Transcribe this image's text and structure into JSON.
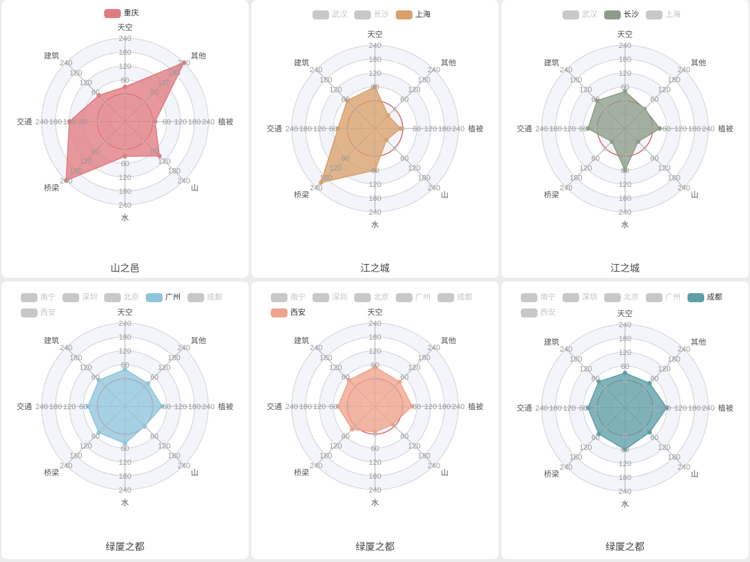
{
  "indicators": [
    "天空",
    "其他",
    "植被",
    "山",
    "水",
    "桥梁",
    "交通",
    "建筑"
  ],
  "radius_ticks": [
    "240",
    "180",
    "120",
    "60",
    "0"
  ],
  "colors": {
    "grid": "#cfd2d8",
    "axis": "#aeb3bb",
    "zero_ring": "#e05050",
    "band_light": "#f3f5fa",
    "band_white": "#ffffff",
    "legend_off": "#c8c8c8"
  },
  "chart_data": [
    {
      "type": "radar",
      "title": "山之邑",
      "indicators": [
        "天空",
        "其他",
        "植被",
        "山",
        "水",
        "桥梁",
        "交通",
        "建筑"
      ],
      "range": [
        -120,
        240
      ],
      "legend": [
        {
          "name": "重庆",
          "active": true
        }
      ],
      "series": [
        {
          "name": "重庆",
          "color": "#e07b80",
          "values": [
            30,
            240,
            10,
            90,
            30,
            240,
            120,
            40
          ]
        }
      ]
    },
    {
      "type": "radar",
      "title": "江之城",
      "indicators": [
        "天空",
        "其他",
        "植被",
        "山",
        "水",
        "桥梁",
        "交通",
        "建筑"
      ],
      "range": [
        -120,
        240
      ],
      "legend": [
        {
          "name": "武汉",
          "active": false
        },
        {
          "name": "长沙",
          "active": false
        },
        {
          "name": "上海",
          "active": true
        }
      ],
      "series": [
        {
          "name": "上海",
          "color": "#d9a06b",
          "values": [
            60,
            -40,
            -10,
            -50,
            60,
            210,
            40,
            50
          ]
        }
      ]
    },
    {
      "type": "radar",
      "title": "江之城",
      "indicators": [
        "天空",
        "其他",
        "植被",
        "山",
        "水",
        "桥梁",
        "交通",
        "建筑"
      ],
      "range": [
        -120,
        240
      ],
      "legend": [
        {
          "name": "武汉",
          "active": false
        },
        {
          "name": "长沙",
          "active": true
        },
        {
          "name": "上海",
          "active": false
        }
      ],
      "series": [
        {
          "name": "长沙",
          "color": "#8c9c88",
          "values": [
            40,
            0,
            30,
            -40,
            60,
            -40,
            40,
            50
          ]
        }
      ]
    },
    {
      "type": "radar",
      "title": "绿厦之都",
      "indicators": [
        "天空",
        "其他",
        "植被",
        "山",
        "水",
        "桥梁",
        "交通",
        "建筑"
      ],
      "range": [
        -120,
        240
      ],
      "legend": [
        {
          "name": "南宁",
          "active": false
        },
        {
          "name": "深圳",
          "active": false
        },
        {
          "name": "北京",
          "active": false
        },
        {
          "name": "广州",
          "active": true
        },
        {
          "name": "成都",
          "active": false
        },
        {
          "name": "西安",
          "active": false
        }
      ],
      "series": [
        {
          "name": "广州",
          "color": "#8fc5dc",
          "values": [
            40,
            20,
            40,
            0,
            40,
            40,
            40,
            40
          ]
        }
      ]
    },
    {
      "type": "radar",
      "title": "绿厦之都",
      "indicators": [
        "天空",
        "其他",
        "植被",
        "山",
        "水",
        "桥梁",
        "交通",
        "建筑"
      ],
      "range": [
        -120,
        240
      ],
      "legend": [
        {
          "name": "南宁",
          "active": false
        },
        {
          "name": "深圳",
          "active": false
        },
        {
          "name": "北京",
          "active": false
        },
        {
          "name": "广州",
          "active": false
        },
        {
          "name": "成都",
          "active": false
        },
        {
          "name": "西安",
          "active": true
        }
      ],
      "series": [
        {
          "name": "西安",
          "color": "#f0a38c",
          "values": [
            50,
            30,
            40,
            -10,
            -10,
            20,
            40,
            40
          ]
        }
      ]
    },
    {
      "type": "radar",
      "title": "绿厦之都",
      "indicators": [
        "天空",
        "其他",
        "植被",
        "山",
        "水",
        "桥梁",
        "交通",
        "建筑"
      ],
      "range": [
        -120,
        240
      ],
      "legend": [
        {
          "name": "南宁",
          "active": false
        },
        {
          "name": "深圳",
          "active": false
        },
        {
          "name": "北京",
          "active": false
        },
        {
          "name": "广州",
          "active": false
        },
        {
          "name": "成都",
          "active": true
        },
        {
          "name": "西安",
          "active": false
        }
      ],
      "series": [
        {
          "name": "成都",
          "color": "#5e9ea6",
          "values": [
            30,
            30,
            60,
            30,
            60,
            40,
            40,
            40
          ]
        }
      ]
    }
  ]
}
